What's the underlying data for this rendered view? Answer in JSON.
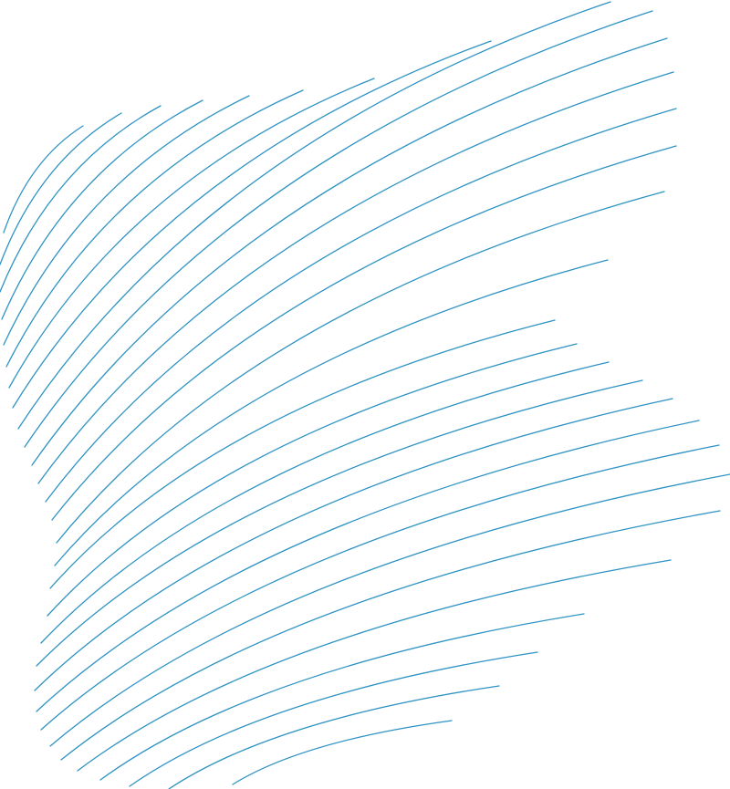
{
  "background_color": "#ffffff",
  "line_color": "#2e93c3",
  "line_count": 30
}
